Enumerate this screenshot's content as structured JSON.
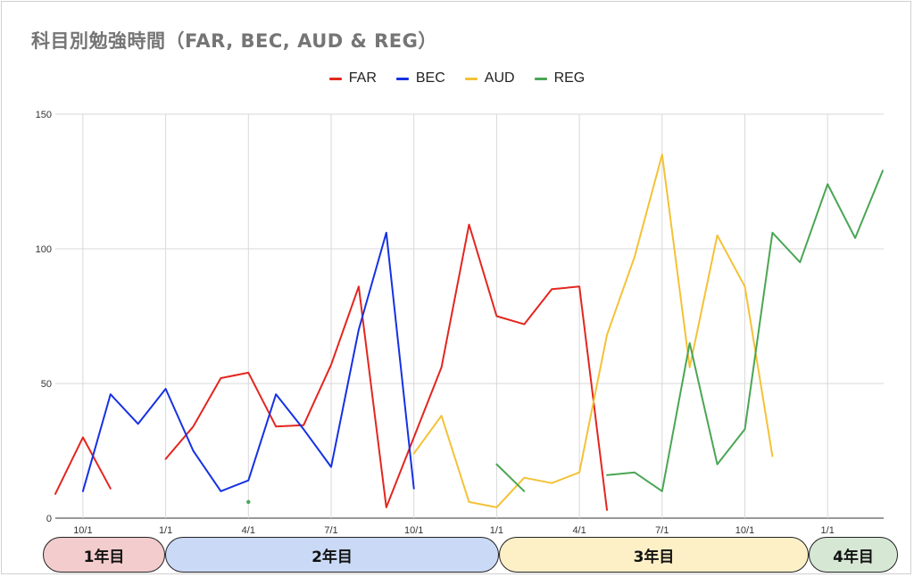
{
  "title": "科目別勉強時間（FAR, BEC, AUD & REG）",
  "legend": [
    {
      "name": "FAR",
      "color": "#e3261f"
    },
    {
      "name": "BEC",
      "color": "#1631e3"
    },
    {
      "name": "AUD",
      "color": "#f4c237"
    },
    {
      "name": "REG",
      "color": "#4aa654"
    }
  ],
  "periods": [
    {
      "label": "1年目",
      "color": "#f3cccd"
    },
    {
      "label": "2年目",
      "color": "#cad9f6"
    },
    {
      "label": "3年目",
      "color": "#fdf0c7"
    },
    {
      "label": "4年目",
      "color": "#d6e8d4"
    }
  ],
  "chart_data": {
    "type": "line",
    "title": "科目別勉強時間（FAR, BEC, AUD & REG）",
    "ylim": [
      0,
      150
    ],
    "yticks": [
      0,
      50,
      100,
      150
    ],
    "x_ticks": [
      {
        "i": 1,
        "label": "10/1"
      },
      {
        "i": 4,
        "label": "1/1"
      },
      {
        "i": 7,
        "label": "4/1"
      },
      {
        "i": 10,
        "label": "7/1"
      },
      {
        "i": 13,
        "label": "10/1"
      },
      {
        "i": 16,
        "label": "1/1"
      },
      {
        "i": 19,
        "label": "4/1"
      },
      {
        "i": 22,
        "label": "7/1"
      },
      {
        "i": 25,
        "label": "10/1"
      },
      {
        "i": 28,
        "label": "1/1"
      }
    ],
    "grid": true,
    "legend_position": "top",
    "series": [
      {
        "name": "FAR",
        "color": "#e3261f",
        "points": [
          [
            0,
            9
          ],
          [
            1,
            30
          ],
          [
            2,
            11
          ],
          [
            null,
            null
          ],
          [
            4,
            22
          ],
          [
            5,
            34
          ],
          [
            6,
            52
          ],
          [
            7,
            54
          ],
          [
            8,
            34
          ],
          [
            9,
            34.5
          ],
          [
            10,
            57
          ],
          [
            11,
            86
          ],
          [
            12,
            4
          ],
          [
            13,
            30
          ],
          [
            14,
            56
          ],
          [
            15,
            109
          ],
          [
            16,
            75
          ],
          [
            17,
            72
          ],
          [
            18,
            85
          ],
          [
            19,
            86
          ],
          [
            20,
            3
          ]
        ]
      },
      {
        "name": "BEC",
        "color": "#1631e3",
        "points": [
          [
            1,
            10
          ],
          [
            2,
            46
          ],
          [
            3,
            35
          ],
          [
            4,
            48
          ],
          [
            5,
            25
          ],
          [
            6,
            10
          ],
          [
            7,
            14
          ],
          [
            8,
            46
          ],
          [
            9,
            33
          ],
          [
            10,
            19
          ],
          [
            11,
            70
          ],
          [
            12,
            106
          ],
          [
            13,
            11
          ]
        ]
      },
      {
        "name": "AUD",
        "color": "#f4c237",
        "points": [
          [
            13,
            24
          ],
          [
            14,
            38
          ],
          [
            15,
            6
          ],
          [
            16,
            4
          ],
          [
            17,
            15
          ],
          [
            18,
            13
          ],
          [
            19,
            17
          ],
          [
            20,
            68
          ],
          [
            21,
            97
          ],
          [
            22,
            135
          ],
          [
            23,
            56
          ],
          [
            24,
            105
          ],
          [
            25,
            86
          ],
          [
            26,
            23
          ]
        ]
      },
      {
        "name": "REG",
        "color": "#4aa654",
        "points": [
          [
            7,
            6
          ],
          [
            null,
            null
          ],
          [
            16,
            20
          ],
          [
            17,
            10
          ],
          [
            null,
            null
          ],
          [
            20,
            16
          ],
          [
            21,
            17
          ],
          [
            22,
            10
          ],
          [
            23,
            65
          ],
          [
            24,
            20
          ],
          [
            25,
            33
          ],
          [
            26,
            106
          ],
          [
            27,
            95
          ],
          [
            28,
            124
          ],
          [
            29,
            104
          ],
          [
            30,
            129
          ]
        ]
      }
    ]
  }
}
